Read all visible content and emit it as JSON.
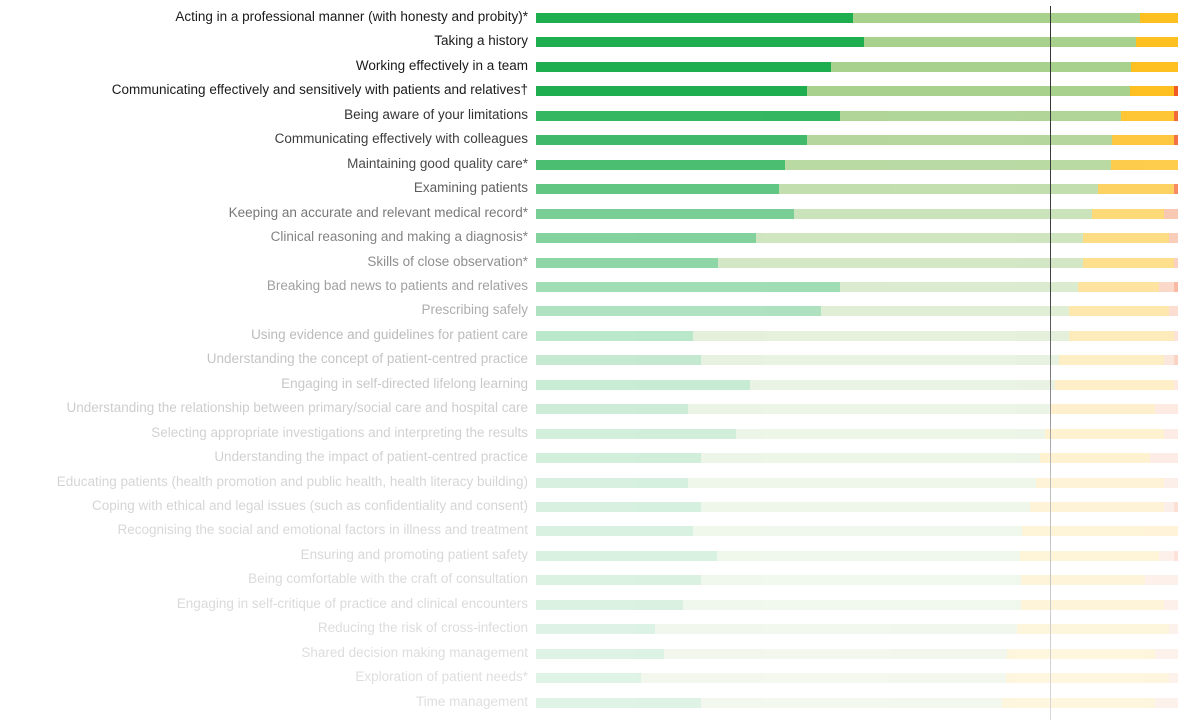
{
  "chart_data": {
    "type": "bar",
    "orientation": "horizontal",
    "stacked": true,
    "title": "",
    "xlabel": "",
    "ylabel": "",
    "xlim": [
      0,
      100
    ],
    "units": "percent of respondents",
    "grid": false,
    "legend": "none",
    "reference_line": {
      "x": 80
    },
    "segment_names": [
      "strongly_agree",
      "agree",
      "neutral",
      "disagree",
      "strongly_disagree"
    ],
    "colors": {
      "strongly_agree": "#1fae4f",
      "agree": "#a9d18e",
      "neutral": "#fec020",
      "disagree": "#f4a582",
      "strongly_disagree": "#f15a24",
      "reference_line": "#333333",
      "label_text": "#1a1a1a"
    },
    "categories": [
      "Acting in a professional manner (with honesty and probity)*",
      "Taking a history",
      "Working effectively in a team",
      "Communicating effectively and sensitively with patients and relatives†",
      "Being aware of your limitations",
      "Communicating effectively with colleagues",
      "Maintaining good quality care*",
      "Examining patients",
      "Keeping an accurate and relevant medical record*",
      "Clinical reasoning and making a diagnosis*",
      "Skills of close observation*",
      "Breaking bad news to patients and relatives",
      "Prescribing safely",
      "Using evidence and guidelines for patient care",
      "Understanding the concept of patient-centred practice",
      "Engaging in self-directed lifelong learning",
      "Understanding the relationship between primary/social care and hospital care",
      "Selecting appropriate investigations and interpreting the results",
      "Understanding the impact of patient-centred practice",
      "Educating patients (health promotion and public health, health literacy building)",
      "Coping with ethical and legal issues (such as confidentiality and consent)",
      "Recognising the social and emotional factors in illness and treatment",
      "Ensuring and promoting patient safety",
      "Being comfortable with the craft of consultation",
      "Engaging in self-critique of practice and clinical encounters",
      "Reducing the risk of cross-infection",
      "Shared decision making management",
      "Exploration of patient needs*",
      "Time management"
    ],
    "series": [
      {
        "name": "strongly_agree",
        "values": [
          49.4,
          51.1,
          46.0,
          42.2,
          47.4,
          42.2,
          38.8,
          37.9,
          40.2,
          34.3,
          28.3,
          47.4,
          44.4,
          24.5,
          25.7,
          33.3,
          23.7,
          31.2,
          25.7,
          23.7,
          25.7,
          24.5,
          28.2,
          25.7,
          22.9,
          18.5,
          19.9,
          16.4,
          25.7
        ]
      },
      {
        "name": "agree",
        "values": [
          44.7,
          42.4,
          46.7,
          50.3,
          43.8,
          47.5,
          50.8,
          49.7,
          46.4,
          50.9,
          56.9,
          37.1,
          38.6,
          58.6,
          55.8,
          47.5,
          56.4,
          48.1,
          52.8,
          54.2,
          51.2,
          51.2,
          47.2,
          49.8,
          52.6,
          56.4,
          53.4,
          56.9,
          46.9
        ]
      },
      {
        "name": "neutral",
        "values": [
          5.9,
          6.5,
          7.3,
          6.9,
          8.3,
          9.7,
          10.4,
          11.8,
          11.2,
          13.4,
          14.2,
          12.6,
          15.6,
          16.4,
          16.4,
          18.5,
          16.4,
          18.5,
          17.1,
          19.9,
          20.9,
          24.3,
          21.7,
          19.3,
          22.3,
          23.7,
          23.1,
          25.4,
          23.8
        ]
      },
      {
        "name": "disagree",
        "values": [
          0,
          0,
          0,
          0,
          0,
          0,
          0,
          0,
          2.2,
          1.4,
          0.6,
          2.3,
          1.4,
          0.6,
          1.6,
          0.6,
          3.6,
          2.2,
          4.4,
          2.2,
          1.6,
          0,
          2.3,
          5.1,
          2.2,
          1.4,
          3.6,
          1.4,
          3.6
        ]
      },
      {
        "name": "strongly_disagree",
        "values": [
          0,
          0,
          0,
          0.6,
          0.6,
          0.6,
          0,
          0.6,
          0,
          0,
          0,
          0.6,
          0,
          0,
          0.6,
          0,
          0,
          0,
          0,
          0,
          0.6,
          0,
          0.6,
          0,
          0,
          0,
          0,
          0,
          0
        ]
      }
    ],
    "row_emphasis": [
      1.0,
      1.0,
      1.0,
      1.0,
      0.9,
      0.85,
      0.8,
      0.7,
      0.6,
      0.55,
      0.5,
      0.42,
      0.36,
      0.3,
      0.26,
      0.24,
      0.22,
      0.2,
      0.2,
      0.18,
      0.18,
      0.17,
      0.17,
      0.16,
      0.16,
      0.15,
      0.15,
      0.14,
      0.14
    ]
  }
}
